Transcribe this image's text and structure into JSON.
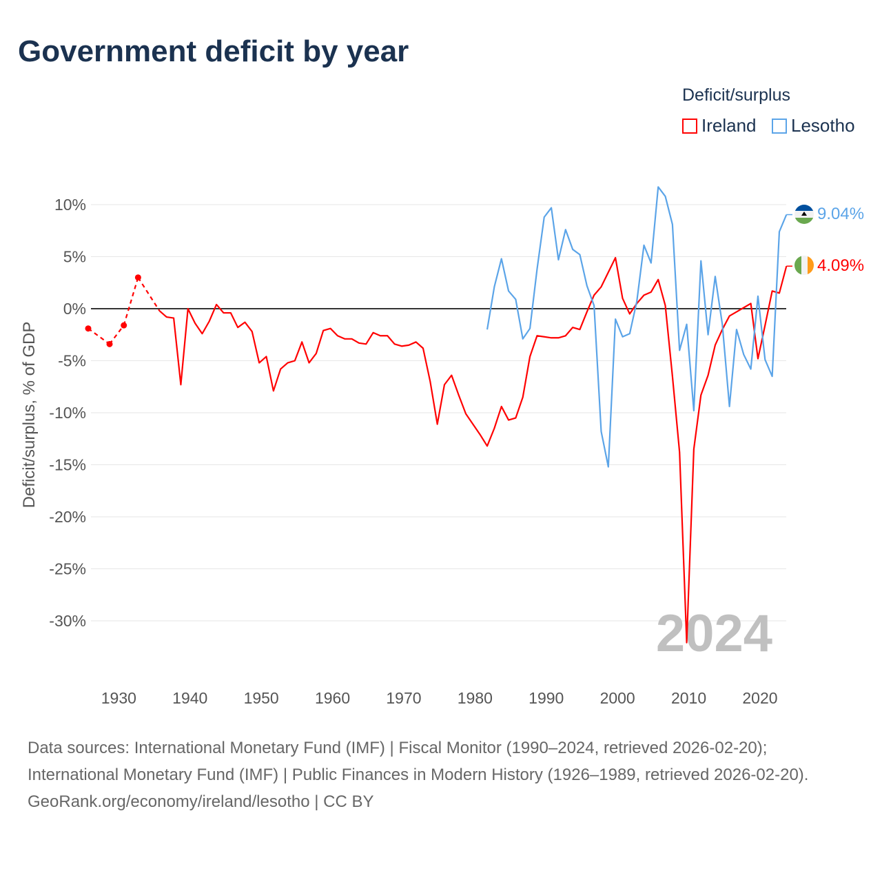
{
  "title": "Government deficit by year",
  "legend": {
    "title": "Deficit/surplus",
    "items": [
      {
        "name": "Ireland",
        "color": "#ff0000"
      },
      {
        "name": "Lesotho",
        "color": "#5ba4e8"
      }
    ]
  },
  "year_watermark": "2024",
  "end_labels": {
    "Lesotho": "9.04%",
    "Ireland": "4.09%"
  },
  "footer": {
    "sources": "Data sources: International Monetary Fund (IMF) | Fiscal Monitor (1990–2024, retrieved 2026-02-20); International Monetary Fund (IMF) | Public Finances in Modern History (1926–1989, retrieved 2026-02-20).",
    "credit": "GeoRank.org/economy/ireland/lesotho | CC BY"
  },
  "chart_data": {
    "type": "line",
    "title": "Government deficit by year",
    "xlabel": "",
    "ylabel": "Deficit/surplus, % of GDP",
    "xlim": [
      1926,
      2024
    ],
    "ylim": [
      -35,
      12
    ],
    "yticks": [
      10,
      5,
      0,
      -5,
      -10,
      -15,
      -20,
      -25,
      -30
    ],
    "ytick_labels": [
      "10%",
      "5%",
      "0%",
      "-5%",
      "-10%",
      "-15%",
      "-20%",
      "-25%",
      "-30%"
    ],
    "xticks": [
      1930,
      1940,
      1950,
      1960,
      1970,
      1980,
      1990,
      2000,
      2010,
      2020
    ],
    "xtick_labels": [
      "1930",
      "1940",
      "1950",
      "1960",
      "1970",
      "1980",
      "1990",
      "2000",
      "2010",
      "2020"
    ],
    "legend_position": "top-right",
    "series": [
      {
        "name": "Ireland",
        "color": "#ff0000",
        "years": [
          1926,
          1929,
          1931,
          1933,
          1936,
          1937,
          1938,
          1939,
          1940,
          1941,
          1942,
          1943,
          1944,
          1945,
          1946,
          1947,
          1948,
          1949,
          1950,
          1951,
          1952,
          1953,
          1954,
          1955,
          1956,
          1957,
          1958,
          1959,
          1960,
          1961,
          1962,
          1963,
          1964,
          1965,
          1966,
          1967,
          1968,
          1969,
          1970,
          1971,
          1972,
          1973,
          1974,
          1975,
          1976,
          1977,
          1978,
          1979,
          1980,
          1981,
          1982,
          1983,
          1984,
          1985,
          1986,
          1987,
          1988,
          1989,
          1990,
          1991,
          1992,
          1993,
          1994,
          1995,
          1996,
          1997,
          1998,
          1999,
          2000,
          2001,
          2002,
          2003,
          2004,
          2005,
          2006,
          2007,
          2008,
          2009,
          2010,
          2011,
          2012,
          2013,
          2014,
          2015,
          2016,
          2017,
          2018,
          2019,
          2020,
          2021,
          2022,
          2023,
          2024
        ],
        "values": [
          -1.9,
          -3.4,
          -1.6,
          3.0,
          -0.2,
          -0.8,
          -0.9,
          -7.3,
          0.0,
          -1.4,
          -2.4,
          -1.2,
          0.4,
          -0.4,
          -0.4,
          -1.8,
          -1.3,
          -2.2,
          -5.2,
          -4.6,
          -7.9,
          -5.8,
          -5.2,
          -5.0,
          -3.2,
          -5.2,
          -4.3,
          -2.1,
          -1.9,
          -2.6,
          -2.9,
          -2.9,
          -3.3,
          -3.4,
          -2.3,
          -2.6,
          -2.6,
          -3.4,
          -3.6,
          -3.5,
          -3.2,
          -3.8,
          -7.0,
          -11.1,
          -7.3,
          -6.4,
          -8.3,
          -10.1,
          -11.1,
          -12.1,
          -13.2,
          -11.5,
          -9.4,
          -10.7,
          -10.5,
          -8.5,
          -4.6,
          -2.6,
          -2.7,
          -2.8,
          -2.8,
          -2.6,
          -1.8,
          -2.0,
          -0.3,
          1.3,
          2.1,
          3.5,
          4.9,
          1.0,
          -0.5,
          0.5,
          1.3,
          1.6,
          2.8,
          0.3,
          -6.5,
          -13.8,
          -32.1,
          -13.5,
          -8.3,
          -6.4,
          -3.5,
          -2.0,
          -0.7,
          -0.3,
          0.1,
          0.5,
          -4.8,
          -1.6,
          1.7,
          1.5,
          4.09
        ]
      },
      {
        "name": "Lesotho",
        "color": "#5ba4e8",
        "years": [
          1982,
          1983,
          1984,
          1985,
          1986,
          1987,
          1988,
          1989,
          1990,
          1991,
          1992,
          1993,
          1994,
          1995,
          1996,
          1997,
          1998,
          1999,
          2000,
          2001,
          2002,
          2003,
          2004,
          2005,
          2006,
          2007,
          2008,
          2009,
          2010,
          2011,
          2012,
          2013,
          2014,
          2015,
          2016,
          2017,
          2018,
          2019,
          2020,
          2021,
          2022,
          2023,
          2024
        ],
        "values": [
          -2.0,
          2.1,
          4.8,
          1.7,
          0.9,
          -2.9,
          -1.9,
          3.8,
          8.8,
          9.7,
          4.7,
          7.6,
          5.7,
          5.2,
          2.2,
          0.3,
          -11.8,
          -15.2,
          -1.0,
          -2.7,
          -2.4,
          0.7,
          6.1,
          4.4,
          11.7,
          10.8,
          8.1,
          -4.0,
          -1.5,
          -9.8,
          4.6,
          -2.5,
          3.1,
          -1.5,
          -9.4,
          -2.0,
          -4.4,
          -5.8,
          1.2,
          -4.9,
          -6.5,
          7.4,
          9.04
        ]
      }
    ]
  }
}
